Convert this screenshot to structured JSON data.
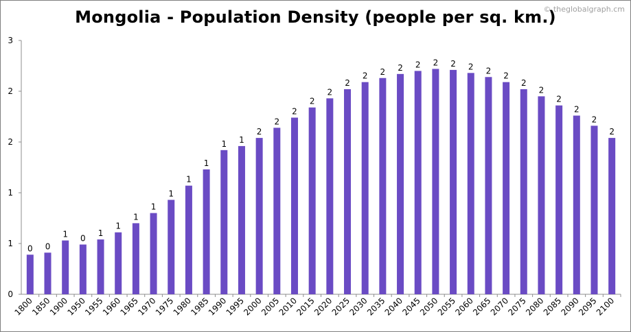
{
  "chart_data": {
    "type": "bar",
    "title": "Mongolia - Population Density (people per sq. km.)",
    "watermark": "© theglobalgraph.cm",
    "xlabel": "",
    "ylabel": "",
    "ylim": [
      0,
      2.5
    ],
    "yticks": [
      0,
      0.5,
      1,
      1.5,
      2,
      2.5
    ],
    "ytick_labels": [
      "0",
      "1",
      "1",
      "2",
      "2",
      "3"
    ],
    "grid": false,
    "legend": "none",
    "bar_color": "#6a4bc4",
    "categories": [
      "1800",
      "1850",
      "1900",
      "1950",
      "1955",
      "1960",
      "1965",
      "1970",
      "1975",
      "1980",
      "1985",
      "1990",
      "1995",
      "2000",
      "2005",
      "2010",
      "2015",
      "2020",
      "2025",
      "2030",
      "2035",
      "2040",
      "2045",
      "2050",
      "2055",
      "2060",
      "2065",
      "2070",
      "2075",
      "2080",
      "2085",
      "2090",
      "2095",
      "2100"
    ],
    "values": [
      0.39,
      0.41,
      0.53,
      0.49,
      0.54,
      0.61,
      0.7,
      0.8,
      0.93,
      1.07,
      1.23,
      1.42,
      1.46,
      1.54,
      1.64,
      1.74,
      1.84,
      1.93,
      2.02,
      2.09,
      2.13,
      2.17,
      2.2,
      2.22,
      2.21,
      2.18,
      2.14,
      2.09,
      2.02,
      1.95,
      1.86,
      1.76,
      1.66,
      1.54
    ],
    "data_labels": [
      "0",
      "0",
      "1",
      "0",
      "1",
      "1",
      "1",
      "1",
      "1",
      "1",
      "1",
      "1",
      "1",
      "2",
      "2",
      "2",
      "2",
      "2",
      "2",
      "2",
      "2",
      "2",
      "2",
      "2",
      "2",
      "2",
      "2",
      "2",
      "2",
      "2",
      "2",
      "2",
      "2",
      "2"
    ]
  }
}
